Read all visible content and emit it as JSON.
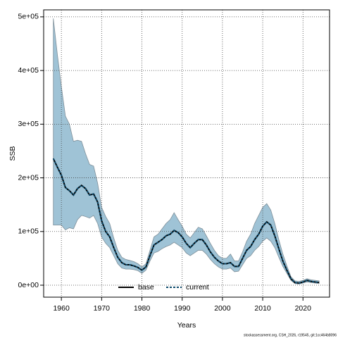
{
  "chart_data": {
    "type": "line",
    "xlabel": "Years",
    "ylabel": "SSB",
    "footnote": "stockassessment.org, CSH_2026, r19545, git:1cc464b8096",
    "x": [
      1958,
      1959,
      1960,
      1961,
      1962,
      1963,
      1964,
      1965,
      1966,
      1967,
      1968,
      1969,
      1970,
      1971,
      1972,
      1973,
      1974,
      1975,
      1976,
      1977,
      1978,
      1979,
      1980,
      1981,
      1982,
      1983,
      1984,
      1985,
      1986,
      1987,
      1988,
      1989,
      1990,
      1991,
      1992,
      1993,
      1994,
      1995,
      1996,
      1997,
      1998,
      1999,
      2000,
      2001,
      2002,
      2003,
      2004,
      2005,
      2006,
      2007,
      2008,
      2009,
      2010,
      2011,
      2012,
      2013,
      2014,
      2015,
      2016,
      2017,
      2018,
      2019,
      2020,
      2021,
      2022,
      2023,
      2024
    ],
    "band": {
      "color": "#9fc3d6",
      "edge": "#7f8f99",
      "low": [
        112000,
        112000,
        112000,
        103000,
        107000,
        105000,
        122000,
        130000,
        128000,
        125000,
        130000,
        115000,
        90000,
        78000,
        70000,
        55000,
        40000,
        32000,
        30000,
        30000,
        29000,
        27000,
        22000,
        28000,
        45000,
        60000,
        63000,
        68000,
        72000,
        75000,
        80000,
        75000,
        70000,
        60000,
        55000,
        60000,
        65000,
        65000,
        58000,
        48000,
        40000,
        34000,
        30000,
        30000,
        32000,
        25000,
        26000,
        38000,
        50000,
        55000,
        65000,
        72000,
        82000,
        88000,
        82000,
        70000,
        52000,
        35000,
        22000,
        9000,
        3000,
        2000,
        4000,
        6000,
        5000,
        4000,
        3000
      ],
      "high": [
        497000,
        430000,
        370000,
        315000,
        300000,
        268000,
        270000,
        268000,
        245000,
        225000,
        222000,
        190000,
        145000,
        128000,
        115000,
        88000,
        65000,
        52000,
        48000,
        46000,
        44000,
        40000,
        34000,
        40000,
        65000,
        90000,
        95000,
        105000,
        115000,
        122000,
        135000,
        122000,
        110000,
        95000,
        88000,
        98000,
        108000,
        105000,
        92000,
        78000,
        65000,
        55000,
        50000,
        50000,
        58000,
        45000,
        45000,
        62000,
        82000,
        95000,
        115000,
        130000,
        145000,
        152000,
        140000,
        115000,
        85000,
        58000,
        36000,
        16000,
        8000,
        7000,
        9000,
        12000,
        10000,
        9000,
        8000
      ]
    },
    "series": [
      {
        "name": "base",
        "color": "#000000",
        "dash": "none",
        "values": [
          236000,
          220000,
          205000,
          182000,
          176000,
          168000,
          180000,
          186000,
          180000,
          168000,
          170000,
          155000,
          120000,
          100000,
          90000,
          70000,
          52000,
          42000,
          38000,
          38000,
          36000,
          33000,
          28000,
          34000,
          55000,
          75000,
          80000,
          85000,
          92000,
          95000,
          102000,
          98000,
          90000,
          78000,
          70000,
          78000,
          85000,
          85000,
          75000,
          62000,
          52000,
          45000,
          40000,
          40000,
          42000,
          35000,
          35000,
          50000,
          65000,
          72000,
          85000,
          95000,
          110000,
          118000,
          112000,
          92000,
          68000,
          45000,
          28000,
          12000,
          5000,
          4000,
          6000,
          9000,
          7000,
          6000,
          5000
        ]
      },
      {
        "name": "current",
        "color": "#0d4a6b",
        "dash": "3 2",
        "values": [
          236000,
          220000,
          205000,
          182000,
          176000,
          168000,
          180000,
          186000,
          180000,
          168000,
          170000,
          155000,
          120000,
          100000,
          90000,
          70000,
          52000,
          42000,
          38000,
          38000,
          36000,
          33000,
          28000,
          34000,
          55000,
          75000,
          80000,
          85000,
          92000,
          95000,
          102000,
          98000,
          90000,
          78000,
          70000,
          78000,
          85000,
          85000,
          75000,
          62000,
          52000,
          45000,
          40000,
          40000,
          42000,
          35000,
          35000,
          50000,
          65000,
          72000,
          85000,
          95000,
          110000,
          118000,
          112000,
          92000,
          68000,
          45000,
          28000,
          12000,
          5000,
          4000,
          6000,
          9000,
          7000,
          6000,
          5000
        ]
      }
    ],
    "xlim": [
      1955.6,
      2026.6
    ],
    "xticks": [
      1960,
      1970,
      1980,
      1990,
      2000,
      2010,
      2020
    ],
    "ylim": [
      -22300,
      513000
    ],
    "yticks": [
      {
        "value": 0,
        "label": "0e+00"
      },
      {
        "value": 100000,
        "label": "1e+05"
      },
      {
        "value": 200000,
        "label": "2e+05"
      },
      {
        "value": 300000,
        "label": "3e+05"
      },
      {
        "value": 400000,
        "label": "4e+05"
      },
      {
        "value": 500000,
        "label": "5e+05"
      }
    ],
    "grid": true,
    "legend": "bottom"
  }
}
